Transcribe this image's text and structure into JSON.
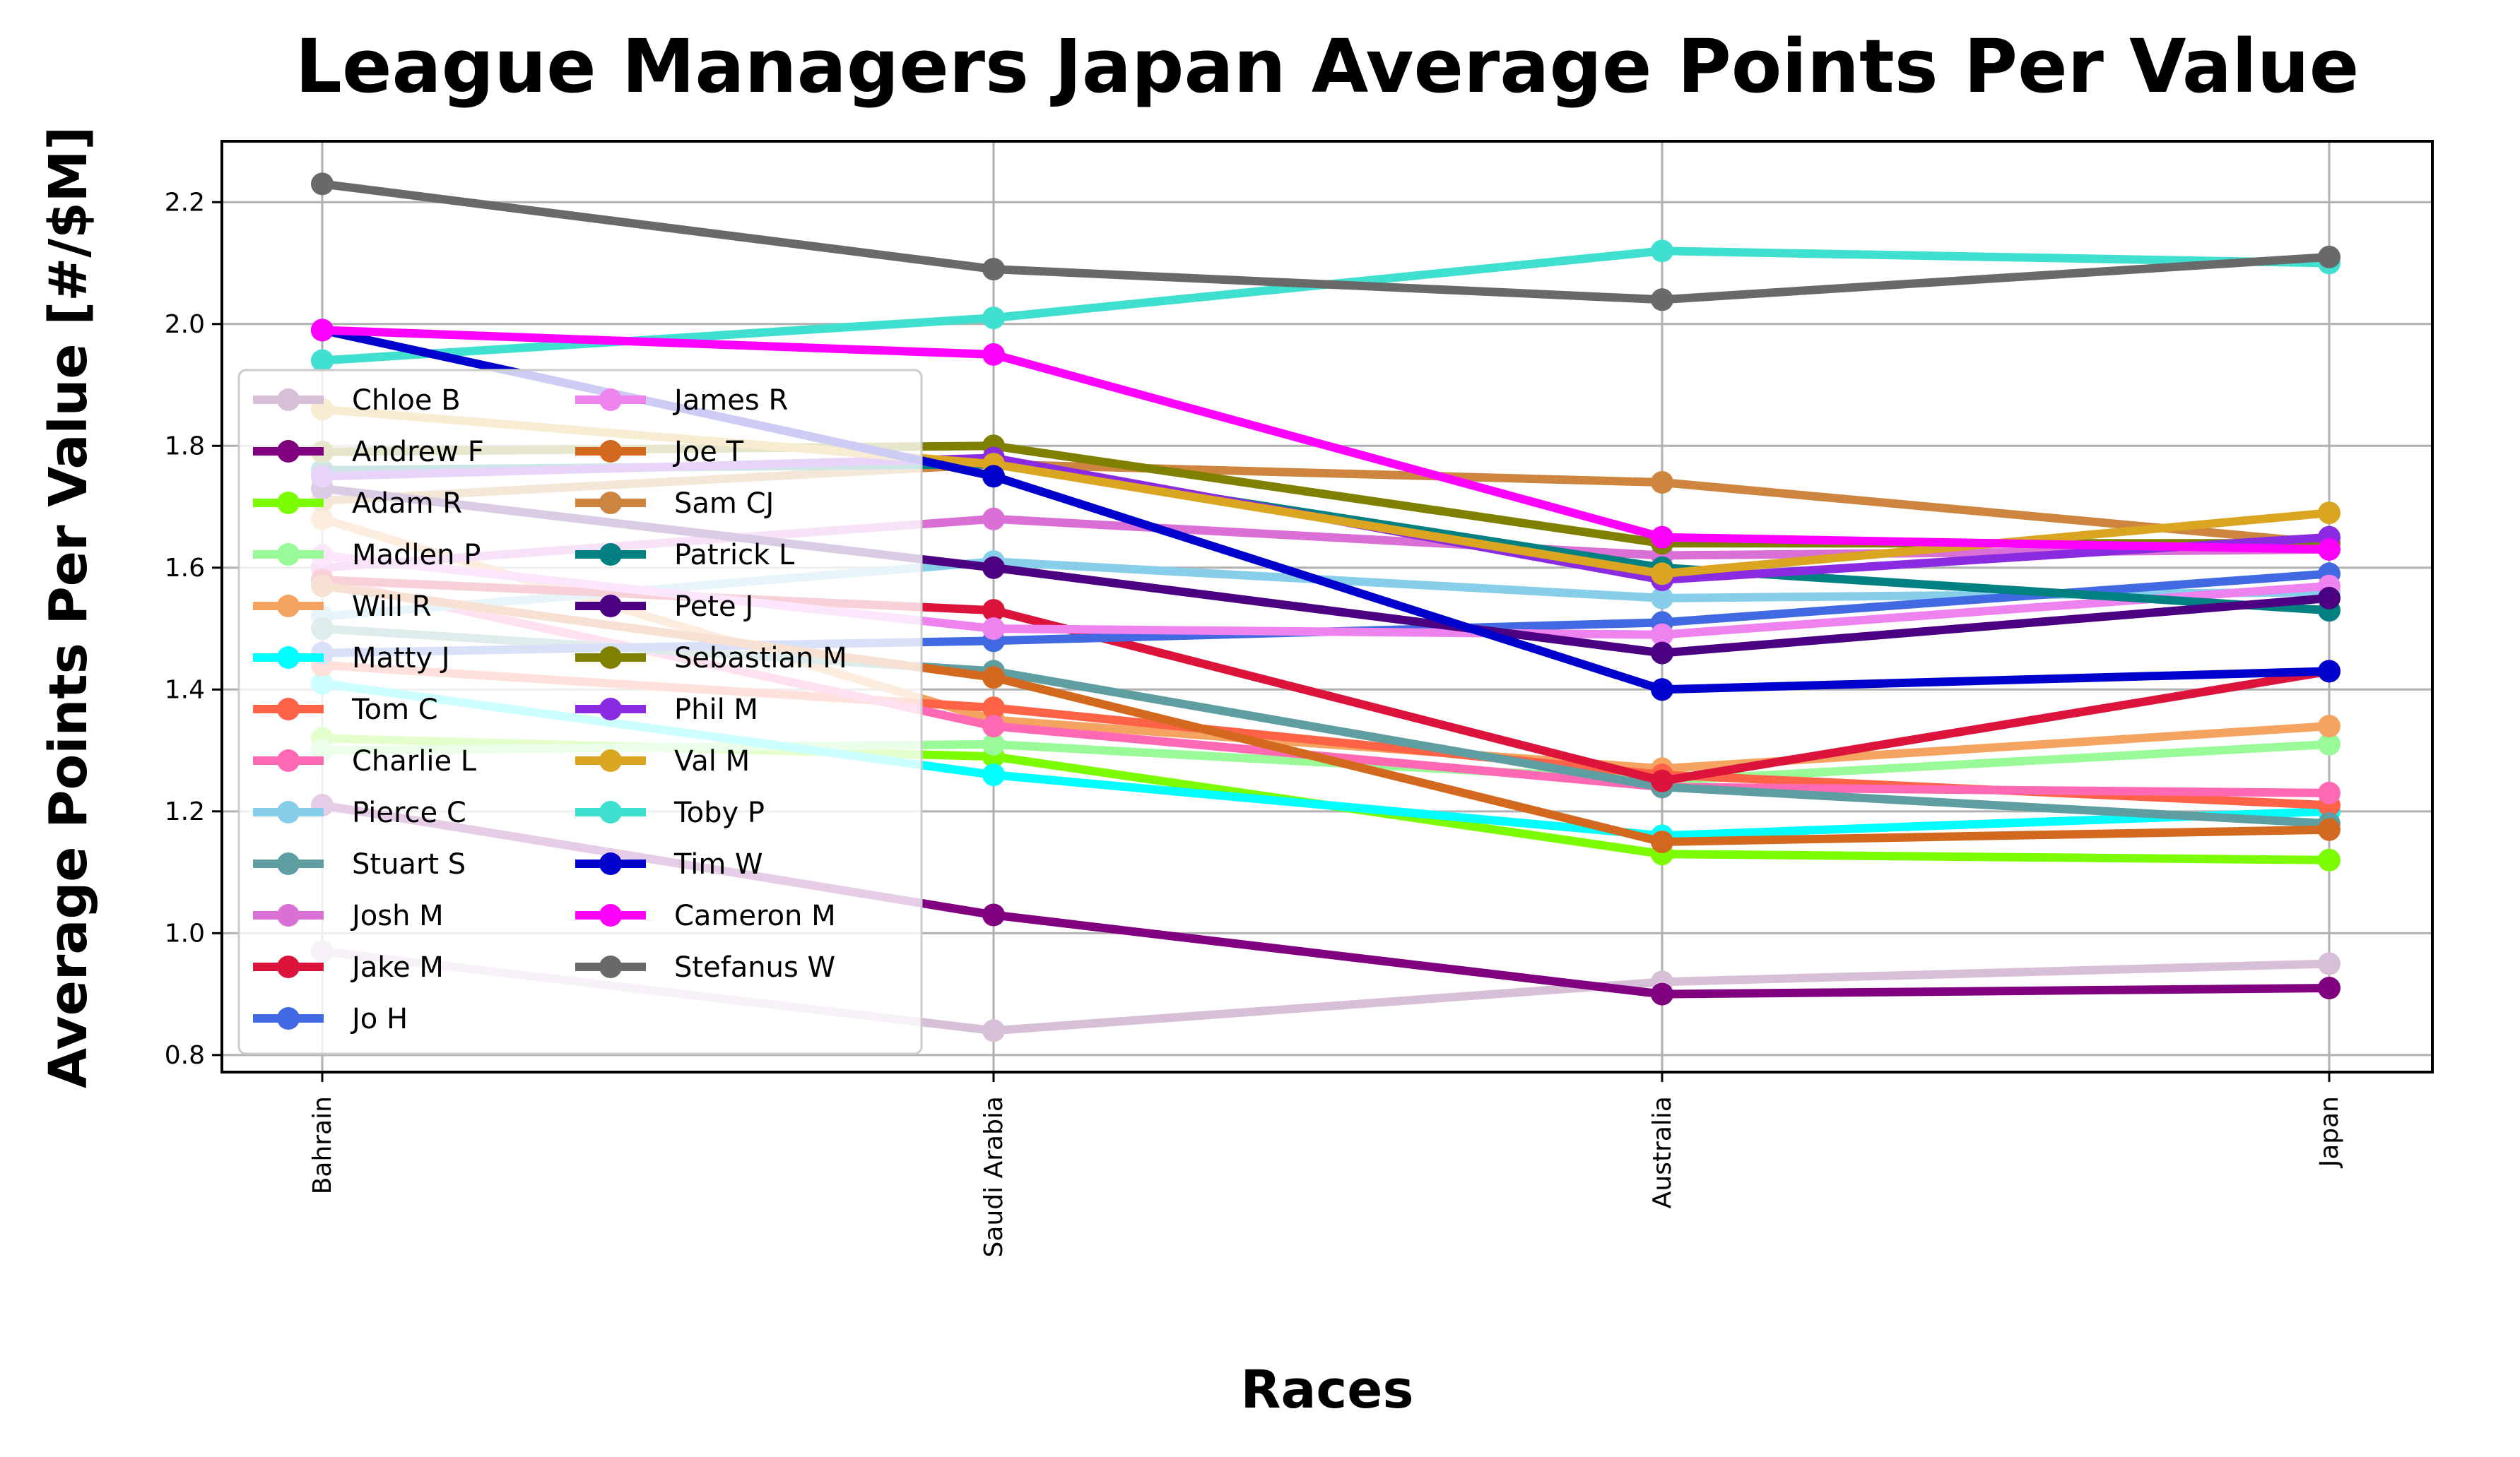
{
  "chart_data": {
    "type": "line",
    "title": "League Managers Japan Average Points Per Value",
    "xlabel": "Races",
    "ylabel": "Average Points Per Value [#/$M]",
    "categories": [
      "Bahrain",
      "Saudi Arabia",
      "Australia",
      "Japan"
    ],
    "ylim": [
      0.772,
      2.3
    ],
    "yticks": [
      "0.8",
      "1.0",
      "1.2",
      "1.4",
      "1.6",
      "1.8",
      "2.0",
      "2.2"
    ],
    "grid": true,
    "legend_position": "lower-left",
    "series": [
      {
        "name": "Chloe B",
        "color": "#D8BFD8",
        "values": [
          0.97,
          0.84,
          0.92,
          0.95
        ]
      },
      {
        "name": "Andrew F",
        "color": "#800080",
        "values": [
          1.21,
          1.03,
          0.9,
          0.91
        ]
      },
      {
        "name": "Adam R",
        "color": "#7CFC00",
        "values": [
          1.32,
          1.29,
          1.13,
          1.12
        ]
      },
      {
        "name": "Madlen P",
        "color": "#98FB98",
        "values": [
          1.3,
          1.31,
          1.25,
          1.31
        ]
      },
      {
        "name": "Will R",
        "color": "#F4A460",
        "values": [
          1.68,
          1.35,
          1.27,
          1.34
        ]
      },
      {
        "name": "Matty J",
        "color": "#00FFFF",
        "values": [
          1.41,
          1.26,
          1.16,
          1.2
        ]
      },
      {
        "name": "Tom C",
        "color": "#FF6347",
        "values": [
          1.44,
          1.37,
          1.26,
          1.21
        ]
      },
      {
        "name": "Charlie L",
        "color": "#FF69B4",
        "values": [
          1.58,
          1.34,
          1.24,
          1.23
        ]
      },
      {
        "name": "Pierce C",
        "color": "#87CEEB",
        "values": [
          1.52,
          1.61,
          1.55,
          1.56
        ]
      },
      {
        "name": "Stuart S",
        "color": "#5F9EA0",
        "values": [
          1.5,
          1.43,
          1.24,
          1.18
        ]
      },
      {
        "name": "Josh M",
        "color": "#DA70D6",
        "values": [
          1.6,
          1.68,
          1.62,
          1.63
        ]
      },
      {
        "name": "Jake M",
        "color": "#DC143C",
        "values": [
          1.58,
          1.53,
          1.25,
          1.43
        ]
      },
      {
        "name": "Jo H",
        "color": "#4169E1",
        "values": [
          1.46,
          1.48,
          1.51,
          1.59
        ]
      },
      {
        "name": "James R",
        "color": "#EE82EE",
        "values": [
          1.62,
          1.5,
          1.49,
          1.57
        ]
      },
      {
        "name": "Joe T",
        "color": "#D2691E",
        "values": [
          1.57,
          1.42,
          1.15,
          1.17
        ]
      },
      {
        "name": "Sam CJ",
        "color": "#CD853F",
        "values": [
          1.71,
          1.77,
          1.74,
          1.64
        ]
      },
      {
        "name": "Patrick L",
        "color": "#008080",
        "values": [
          1.76,
          1.77,
          1.6,
          1.53
        ]
      },
      {
        "name": "Pete J",
        "color": "#4B0082",
        "values": [
          1.73,
          1.6,
          1.46,
          1.55
        ]
      },
      {
        "name": "Sebastian M",
        "color": "#808000",
        "values": [
          1.79,
          1.8,
          1.64,
          1.64
        ]
      },
      {
        "name": "Phil M",
        "color": "#8A2BE2",
        "values": [
          1.75,
          1.78,
          1.58,
          1.65
        ]
      },
      {
        "name": "Val M",
        "color": "#DAA520",
        "values": [
          1.86,
          1.77,
          1.59,
          1.69
        ]
      },
      {
        "name": "Toby P",
        "color": "#40E0D0",
        "values": [
          1.94,
          2.01,
          2.12,
          2.1
        ]
      },
      {
        "name": "Tim W",
        "color": "#0000CD",
        "values": [
          1.99,
          1.75,
          1.4,
          1.43
        ]
      },
      {
        "name": "Cameron M",
        "color": "#FF00FF",
        "values": [
          1.99,
          1.95,
          1.65,
          1.63
        ]
      },
      {
        "name": "Stefanus W",
        "color": "#696969",
        "values": [
          2.23,
          2.09,
          2.04,
          2.11
        ]
      }
    ]
  }
}
